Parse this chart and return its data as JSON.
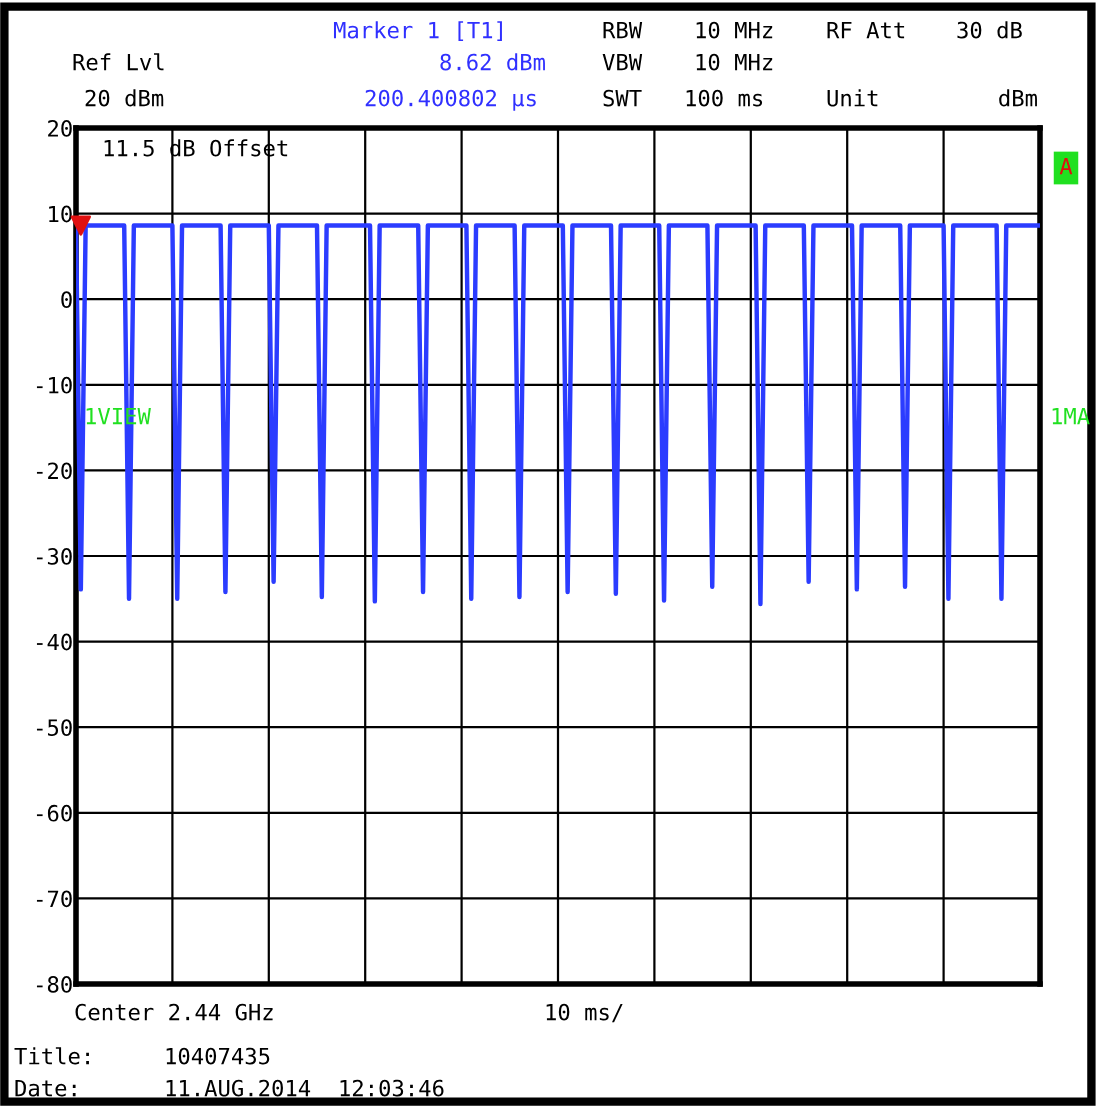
{
  "chart_data": {
    "type": "line",
    "categories": [
      null,
      null,
      null,
      null,
      null,
      null,
      null,
      null,
      null,
      null,
      null,
      null,
      null,
      null,
      null,
      null,
      null,
      null,
      null,
      null,
      null,
      null,
      null,
      null,
      null,
      null,
      null,
      null,
      null,
      null,
      null,
      null,
      null,
      null,
      null,
      null,
      null,
      null,
      null,
      null,
      null,
      null,
      null,
      null,
      null,
      null,
      null,
      null,
      null,
      null,
      null,
      null,
      null,
      null,
      null,
      null,
      null,
      null,
      null,
      null,
      null,
      null,
      null,
      null,
      null,
      null,
      null,
      null,
      null,
      null,
      null,
      null,
      null,
      null,
      null,
      null,
      null,
      null,
      null,
      null,
      null,
      null,
      null,
      null,
      null,
      null,
      null,
      null,
      null,
      null,
      null,
      null,
      null,
      null,
      null,
      null,
      null,
      null,
      null,
      null,
      null,
      null,
      null,
      null,
      null,
      null,
      null,
      null,
      null,
      null,
      null,
      null,
      null,
      null,
      null,
      null,
      null,
      null,
      null,
      null,
      null,
      null,
      null,
      null,
      null,
      null,
      null,
      null,
      null,
      null,
      null,
      null,
      null,
      null,
      null,
      null,
      null,
      null,
      null,
      null,
      null,
      null,
      null,
      null,
      null,
      null,
      null,
      null,
      null,
      null,
      null,
      null,
      null,
      null,
      null,
      null,
      null,
      null,
      null,
      null,
      null,
      null,
      null,
      null,
      null,
      null,
      null,
      null,
      null,
      null,
      null,
      null,
      null,
      null,
      null,
      null,
      null,
      null,
      null,
      null,
      null,
      null,
      null,
      null,
      null,
      null,
      null,
      null,
      null,
      null,
      null,
      null,
      null,
      null,
      null,
      null,
      null,
      null,
      null,
      null,
      null
    ],
    "series": [
      {
        "color": "#2b3cff",
        "values": [
          8.6,
          -33.9,
          8.6,
          8.6,
          8.6,
          8.6,
          8.6,
          8.6,
          8.6,
          8.6,
          8.6,
          -35,
          8.6,
          8.6,
          8.6,
          8.6,
          8.6,
          8.6,
          8.6,
          8.6,
          8.6,
          -35,
          8.6,
          8.6,
          8.6,
          8.6,
          8.6,
          8.6,
          8.6,
          8.6,
          8.6,
          -34.2,
          8.6,
          8.6,
          8.6,
          8.6,
          8.6,
          8.6,
          8.6,
          8.6,
          8.6,
          -33,
          8.6,
          8.6,
          8.6,
          8.6,
          8.6,
          8.6,
          8.6,
          8.6,
          8.6,
          -34.8,
          8.6,
          8.6,
          8.6,
          8.6,
          8.6,
          8.6,
          8.6,
          8.6,
          8.6,
          8.6,
          -35.3,
          8.6,
          8.6,
          8.6,
          8.6,
          8.6,
          8.6,
          8.6,
          8.6,
          8.6,
          -34.2,
          8.6,
          8.6,
          8.6,
          8.6,
          8.6,
          8.6,
          8.6,
          8.6,
          8.6,
          -35,
          8.6,
          8.6,
          8.6,
          8.6,
          8.6,
          8.6,
          8.6,
          8.6,
          8.6,
          -34.8,
          8.6,
          8.6,
          8.6,
          8.6,
          8.6,
          8.6,
          8.6,
          8.6,
          8.6,
          -34.2,
          8.6,
          8.6,
          8.6,
          8.6,
          8.6,
          8.6,
          8.6,
          8.6,
          8.6,
          -34.4,
          8.6,
          8.6,
          8.6,
          8.6,
          8.6,
          8.6,
          8.6,
          8.6,
          8.6,
          -35.2,
          8.6,
          8.6,
          8.6,
          8.6,
          8.6,
          8.6,
          8.6,
          8.6,
          8.6,
          -33.6,
          8.6,
          8.6,
          8.6,
          8.6,
          8.6,
          8.6,
          8.6,
          8.6,
          8.6,
          -35.6,
          8.6,
          8.6,
          8.6,
          8.6,
          8.6,
          8.6,
          8.6,
          8.6,
          8.6,
          -33,
          8.6,
          8.6,
          8.6,
          8.6,
          8.6,
          8.6,
          8.6,
          8.6,
          8.6,
          -33.9,
          8.6,
          8.6,
          8.6,
          8.6,
          8.6,
          8.6,
          8.6,
          8.6,
          8.6,
          -33.6,
          8.6,
          8.6,
          8.6,
          8.6,
          8.6,
          8.6,
          8.6,
          8.6,
          -35,
          8.6,
          8.6,
          8.6,
          8.6,
          8.6,
          8.6,
          8.6,
          8.6,
          8.6,
          8.6,
          -35,
          8.6,
          8.6,
          8.6,
          8.6,
          8.6,
          8.6,
          8.6,
          8.6
        ]
      }
    ],
    "ylim": [
      -80,
      20
    ],
    "yticks": [
      -80,
      -70,
      -60,
      -50,
      -40,
      -30,
      -20,
      -10,
      0,
      10,
      20
    ],
    "tick_labels": "y",
    "grid": true,
    "annotations": [
      "Marker 1 [T1]",
      "Ref Lvl",
      "8.62 dBm",
      "20 dBm",
      "200.400802 µs",
      "RBW",
      "10 MHz",
      "VBW",
      "10 MHz",
      "SWT",
      "100 ms",
      "RF Att",
      "30 dB",
      "Unit",
      "dBm",
      "11.5 dB Offset",
      "A",
      "1VIEW",
      "1MA",
      "Center 2.44 GHz",
      "10 ms/",
      "Title:",
      "10407435",
      "Date:",
      "11.AUG.2014  12:03:46"
    ]
  }
}
